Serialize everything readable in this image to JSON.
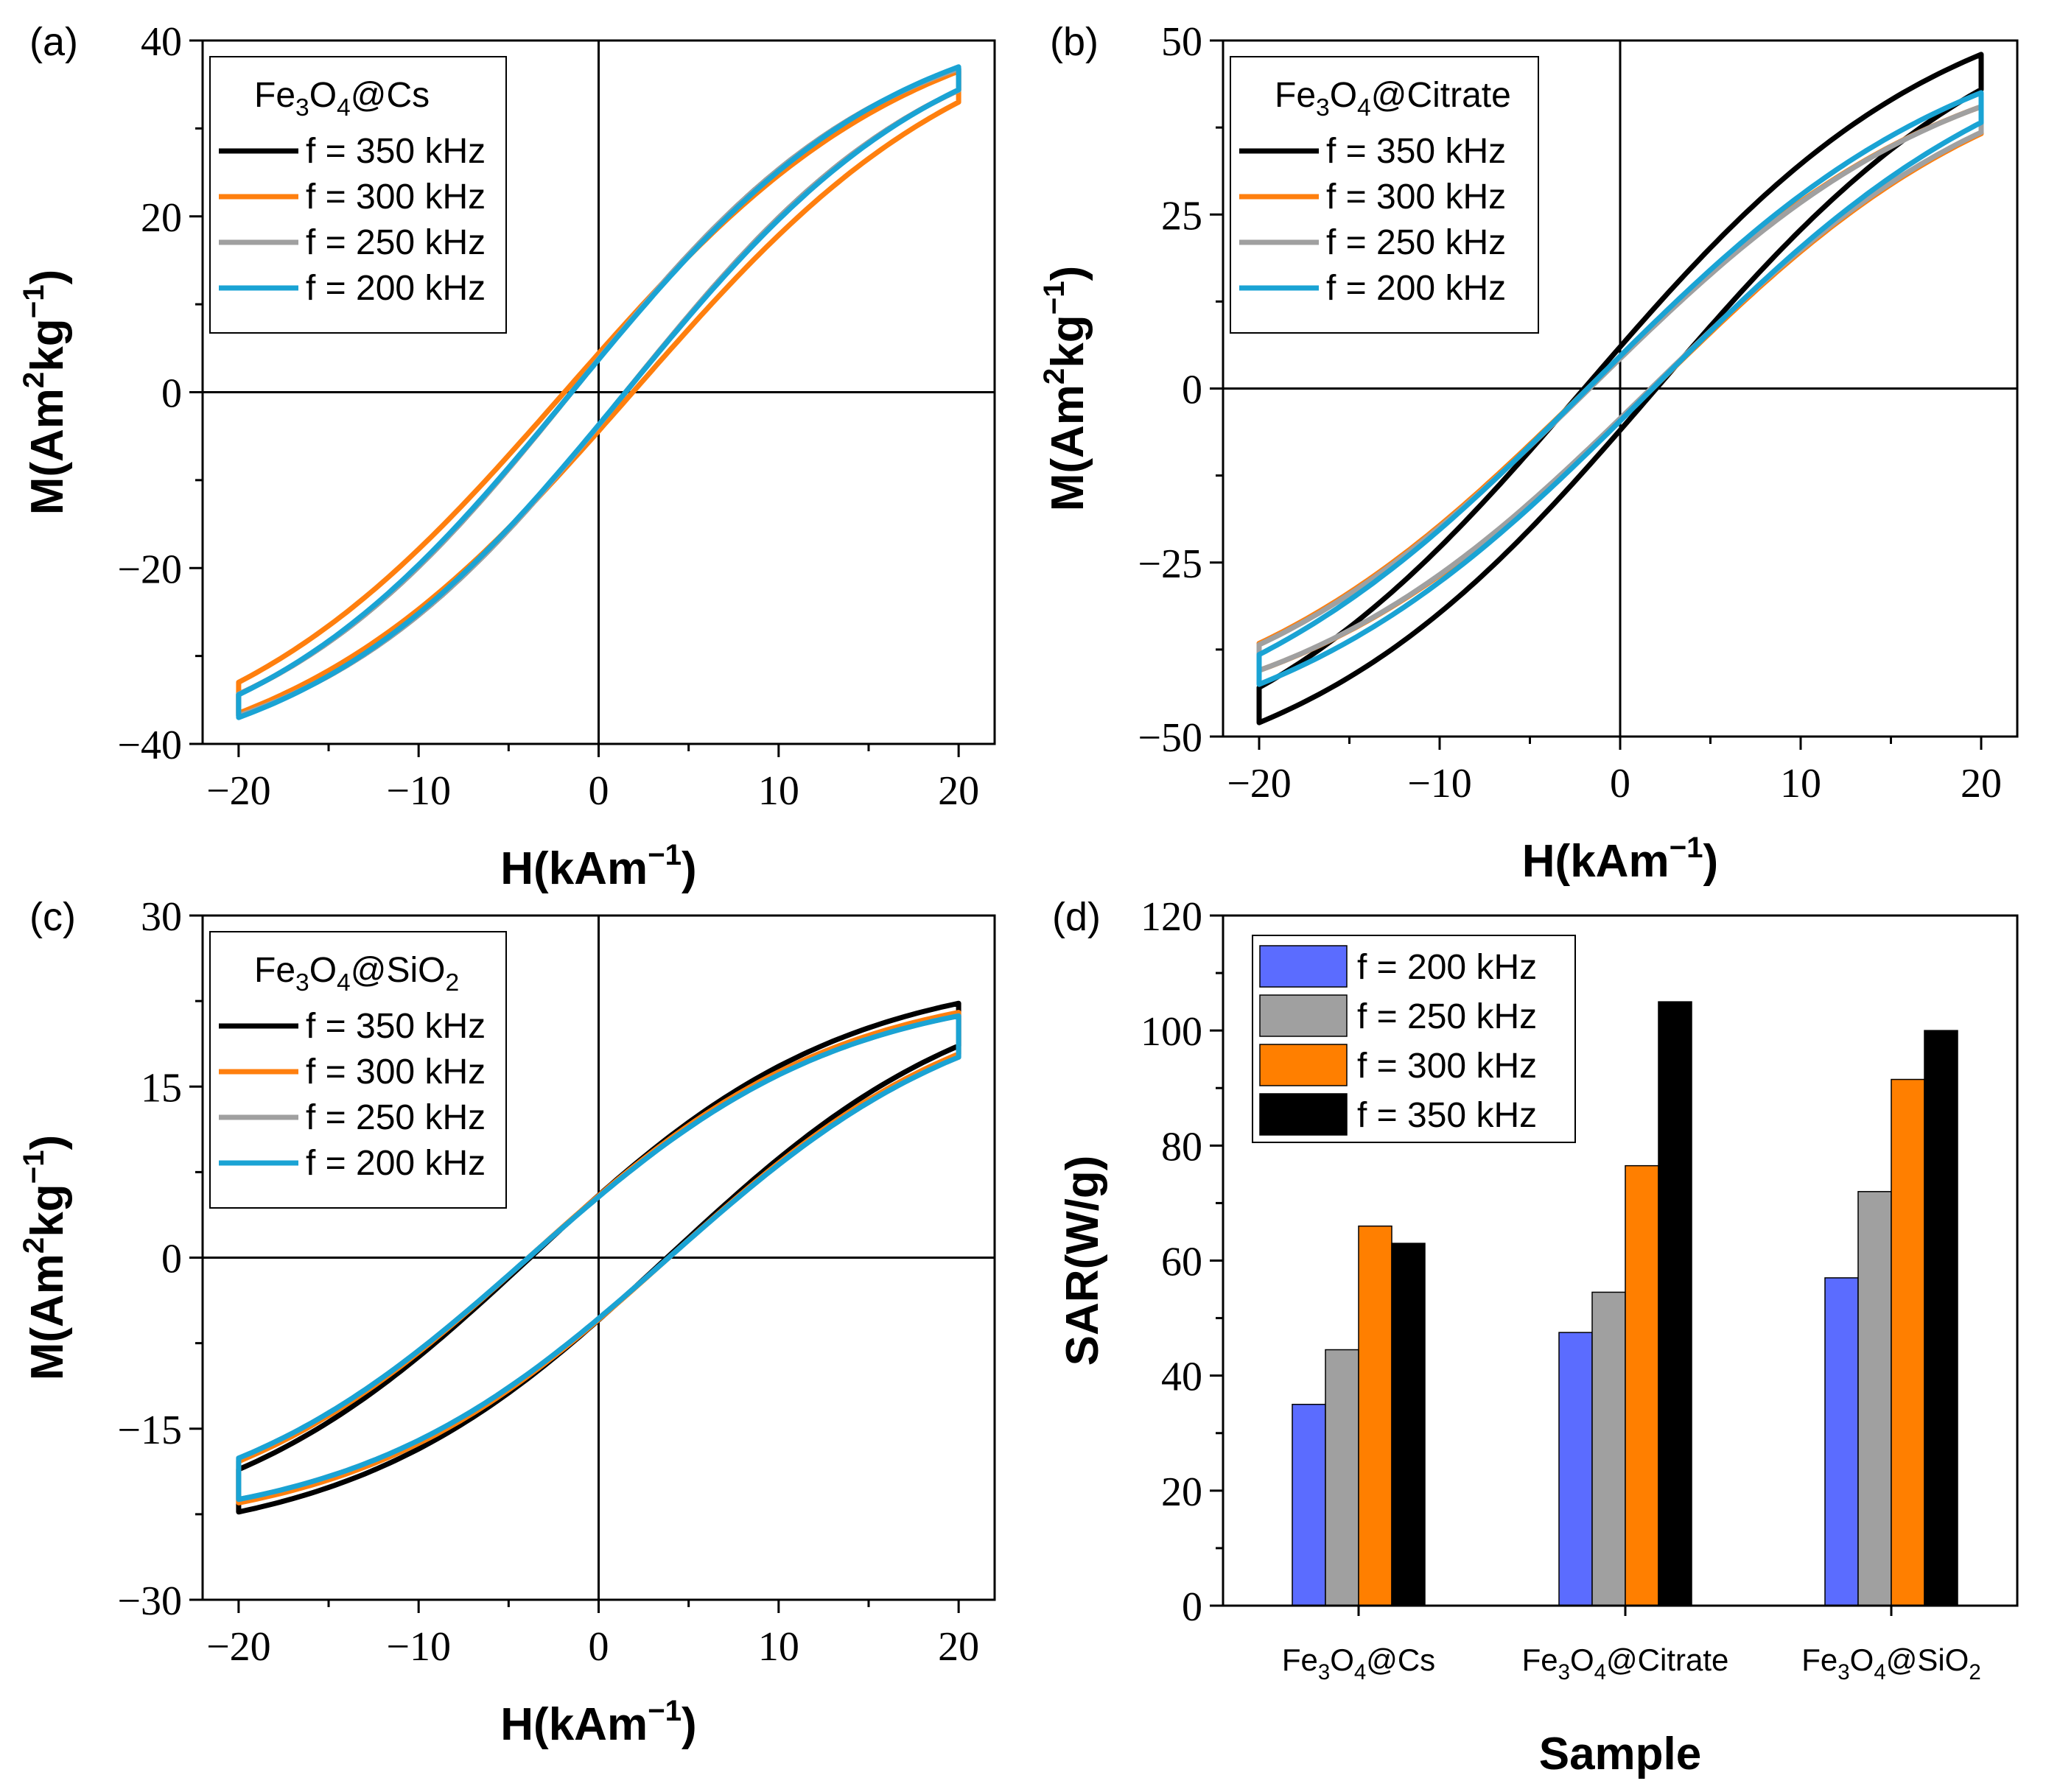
{
  "colors": {
    "350": "#000000",
    "300": "#ff7f0e",
    "250": "#a0a0a0",
    "200": "#1aa3d4",
    "bar200": "#5b6cff",
    "bar250": "#a0a0a0",
    "bar300": "#ff7f00",
    "bar350": "#000000"
  },
  "chart_data": [
    {
      "id": "a",
      "type": "line",
      "panel_label": "(a)",
      "legend_title": {
        "base": "Fe",
        "sub1": "3",
        "mid": "O",
        "sub2": "4",
        "tail": "@Cs",
        "sub3": ""
      },
      "xlabel": {
        "main": "H(kAm",
        "sup": "−1",
        "end": ")"
      },
      "ylabel": {
        "a": "M(Am",
        "sup1": "2",
        "b": "kg",
        "sup2": "−1",
        "c": ")"
      },
      "xlim": [
        -22,
        22
      ],
      "ylim": [
        -40,
        40
      ],
      "xticks": [
        -20,
        -10,
        0,
        10,
        20
      ],
      "xtick_labels": [
        "−20",
        "−10",
        "0",
        "10",
        "20"
      ],
      "yticks": [
        -40,
        -20,
        0,
        20,
        40
      ],
      "ytick_labels": [
        "−40",
        "−20",
        "0",
        "20",
        "40"
      ],
      "series": [
        {
          "name": "f = 350 kHz",
          "freq": "350",
          "hmax": 20,
          "mmax": 36.8,
          "coercive": 1.5,
          "remanence": 3.2
        },
        {
          "name": "f = 300 kHz",
          "freq": "300",
          "hmax": 20,
          "mmax": 36.5,
          "coercive": 1.9,
          "remanence": 3.6
        },
        {
          "name": "f = 250 kHz",
          "freq": "250",
          "hmax": 20,
          "mmax": 36.8,
          "coercive": 1.5,
          "remanence": 3.2
        },
        {
          "name": "f = 200 kHz",
          "freq": "200",
          "hmax": 20,
          "mmax": 37.0,
          "coercive": 1.5,
          "remanence": 3.1
        }
      ]
    },
    {
      "id": "b",
      "type": "line",
      "panel_label": "(b)",
      "legend_title": {
        "base": "Fe",
        "sub1": "3",
        "mid": "O",
        "sub2": "4",
        "tail": "@Citrate",
        "sub3": ""
      },
      "xlabel": {
        "main": "H(kAm",
        "sup": "−1",
        "end": ")"
      },
      "ylabel": {
        "a": "M(Am",
        "sup1": "2",
        "b": "kg",
        "sup2": "−1",
        "c": ")"
      },
      "xlim": [
        -22,
        22
      ],
      "ylim": [
        -50,
        50
      ],
      "xticks": [
        -20,
        -10,
        0,
        10,
        20
      ],
      "xtick_labels": [
        "−20",
        "−10",
        "0",
        "10",
        "20"
      ],
      "yticks": [
        -50,
        -25,
        0,
        25,
        50
      ],
      "ytick_labels": [
        "−50",
        "−25",
        "0",
        "25",
        "50"
      ],
      "series": [
        {
          "name": "f = 350 kHz",
          "freq": "350",
          "hmax": 20,
          "mmax": 48.0,
          "coercive": 2.0,
          "remanence": 4.8
        },
        {
          "name": "f = 300 kHz",
          "freq": "300",
          "hmax": 20,
          "mmax": 40.5,
          "coercive": 1.8,
          "remanence": 3.6
        },
        {
          "name": "f = 250 kHz",
          "freq": "250",
          "hmax": 20,
          "mmax": 40.5,
          "coercive": 1.7,
          "remanence": 3.4
        },
        {
          "name": "f = 200 kHz",
          "freq": "200",
          "hmax": 20,
          "mmax": 42.5,
          "coercive": 1.8,
          "remanence": 3.6
        }
      ]
    },
    {
      "id": "c",
      "type": "line",
      "panel_label": "(c)",
      "legend_title": {
        "base": "Fe",
        "sub1": "3",
        "mid": "O",
        "sub2": "4",
        "tail": "@SiO",
        "sub3": "2"
      },
      "xlabel": {
        "main": "H(kAm",
        "sup": "−1",
        "end": ")"
      },
      "ylabel": {
        "a": "M(Am",
        "sup1": "2",
        "b": "kg",
        "sup2": "−1",
        "c": ")"
      },
      "xlim": [
        -22,
        22
      ],
      "ylim": [
        -30,
        30
      ],
      "xticks": [
        -20,
        -10,
        0,
        10,
        20
      ],
      "xtick_labels": [
        "−20",
        "−10",
        "0",
        "10",
        "20"
      ],
      "yticks": [
        -30,
        -15,
        0,
        15,
        30
      ],
      "ytick_labels": [
        "−30",
        "−15",
        "0",
        "15",
        "30"
      ],
      "series": [
        {
          "name": "f = 350 kHz",
          "freq": "350",
          "hmax": 20,
          "mmax": 22.3,
          "coercive": 3.8,
          "remanence": 4.8
        },
        {
          "name": "f = 300 kHz",
          "freq": "300",
          "hmax": 20,
          "mmax": 21.5,
          "coercive": 3.9,
          "remanence": 4.8
        },
        {
          "name": "f = 250 kHz",
          "freq": "250",
          "hmax": 20,
          "mmax": 21.2,
          "coercive": 3.9,
          "remanence": 4.7
        },
        {
          "name": "f = 200 kHz",
          "freq": "200",
          "hmax": 20,
          "mmax": 21.2,
          "coercive": 3.9,
          "remanence": 4.7
        }
      ]
    },
    {
      "id": "d",
      "type": "bar",
      "panel_label": "(d)",
      "xlabel": "Sample",
      "ylabel": "SAR(W/g)",
      "ylim": [
        0,
        120
      ],
      "yticks": [
        0,
        20,
        40,
        60,
        80,
        100,
        120
      ],
      "ytick_labels": [
        "0",
        "20",
        "40",
        "60",
        "80",
        "100",
        "120"
      ],
      "categories": [
        {
          "base": "Fe",
          "sub1": "3",
          "mid": "O",
          "sub2": "4",
          "tail": "@Cs",
          "sub3": ""
        },
        {
          "base": "Fe",
          "sub1": "3",
          "mid": "O",
          "sub2": "4",
          "tail": "@Citrate",
          "sub3": ""
        },
        {
          "base": "Fe",
          "sub1": "3",
          "mid": "O",
          "sub2": "4",
          "tail": "@SiO",
          "sub3": "2"
        }
      ],
      "series": [
        {
          "name": "f = 200 kHz",
          "freq": "200",
          "values": [
            35,
            47.5,
            57
          ]
        },
        {
          "name": "f = 250 kHz",
          "freq": "250",
          "values": [
            44.5,
            54.5,
            72
          ]
        },
        {
          "name": "f = 300 kHz",
          "freq": "300",
          "values": [
            66,
            76.5,
            91.5
          ]
        },
        {
          "name": "f = 350 kHz",
          "freq": "350",
          "values": [
            63,
            105,
            100
          ]
        }
      ]
    }
  ]
}
